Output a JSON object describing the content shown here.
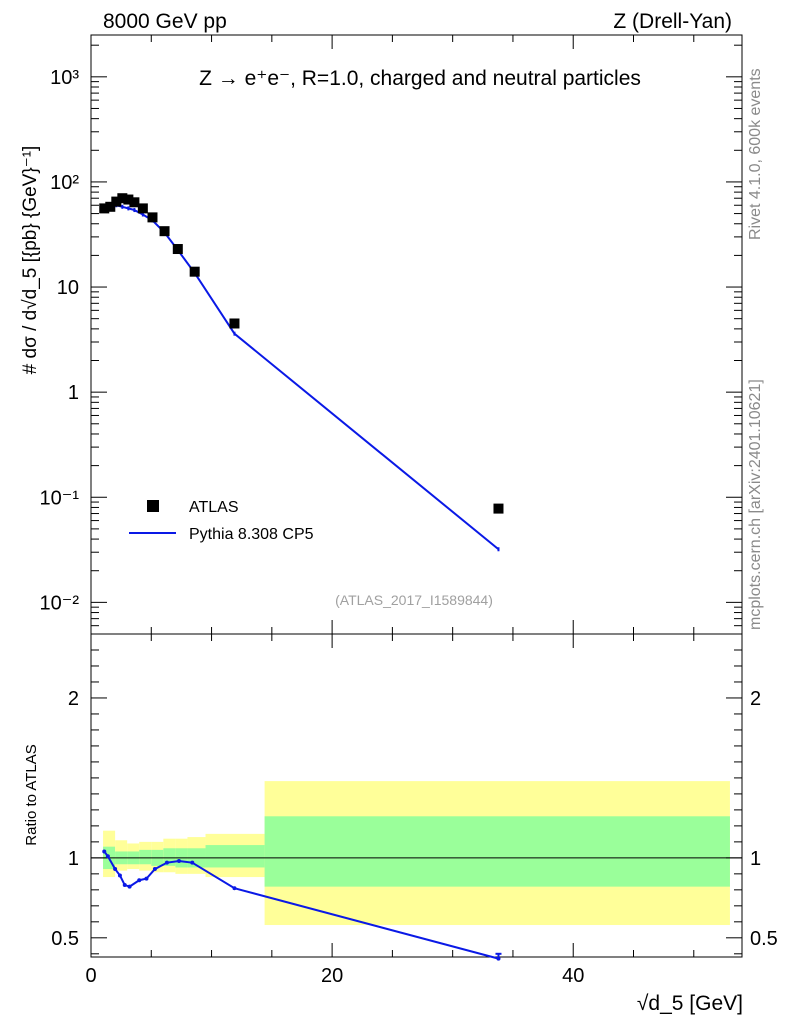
{
  "header": {
    "left": "8000 GeV pp",
    "right": "Z (Drell-Yan)"
  },
  "side_labels": {
    "rivet": "Rivet 4.1.0,  600k events",
    "mcplots": "mcplots.cern.ch [arXiv:2401.10621]"
  },
  "chart_data": {
    "type": "scatter",
    "title": "Z → e⁺e⁻, R=1.0, charged and neutral particles",
    "analysis_id": "(ATLAS_2017_I1589844)",
    "xlabel": "√d_5 [GeV]",
    "ylabel": "# dσ / d√d_5 [{pb} {GeV}⁻¹]",
    "ratio_ylabel": "Ratio to ATLAS",
    "xlim": [
      0,
      54
    ],
    "ylim": [
      0.005,
      2500
    ],
    "ratio_ylim": [
      0.38,
      2.4
    ],
    "x_ticks": [
      "0",
      "20",
      "40"
    ],
    "y_ticks": [
      "10⁻²",
      "10⁻¹",
      "1",
      "10",
      "10²",
      "10³"
    ],
    "ratio_ticks": [
      "0.5",
      "1",
      "2"
    ],
    "legend": [
      "ATLAS",
      "Pythia 8.308 CP5"
    ],
    "series": [
      {
        "name": "ATLAS",
        "x": [
          1.1,
          1.6,
          2.1,
          2.6,
          3.1,
          3.6,
          4.3,
          5.1,
          6.1,
          7.2,
          8.6,
          11.9,
          33.8
        ],
        "y": [
          56,
          58,
          65,
          70,
          68,
          64,
          56,
          46,
          34,
          23,
          14,
          4.5,
          0.078
        ]
      },
      {
        "name": "Pythia 8.308 CP5",
        "x": [
          1.1,
          1.6,
          2.1,
          2.6,
          3.1,
          3.6,
          4.3,
          5.1,
          6.1,
          7.2,
          8.6,
          11.9,
          33.8
        ],
        "y": [
          58,
          59,
          60,
          58,
          56,
          54,
          49,
          43,
          33,
          22.5,
          13.6,
          3.6,
          0.032
        ],
        "ratio": [
          1.04,
          1.01,
          0.93,
          0.89,
          0.83,
          0.82,
          0.86,
          0.87,
          0.93,
          0.97,
          0.98,
          0.97,
          0.81,
          0.37
        ]
      }
    ],
    "ratio_x": [
      1.1,
      1.4,
      2.0,
      2.4,
      2.8,
      3.2,
      4.0,
      4.6,
      5.3,
      6.3,
      7.3,
      8.4,
      11.9,
      33.8
    ],
    "uncertainty_bands": {
      "bin_edges": [
        1.0,
        2.0,
        3.0,
        4.0,
        5.0,
        6.0,
        7.0,
        8.0,
        9.5,
        14.4,
        53.0
      ],
      "inner_low": [
        0.93,
        0.96,
        0.96,
        0.96,
        0.95,
        0.95,
        0.94,
        0.94,
        0.94,
        0.82
      ],
      "inner_high": [
        1.07,
        1.04,
        1.04,
        1.05,
        1.05,
        1.06,
        1.06,
        1.06,
        1.08,
        1.26
      ],
      "outer_low": [
        0.88,
        0.92,
        0.93,
        0.92,
        0.91,
        0.91,
        0.9,
        0.9,
        0.88,
        0.58
      ],
      "outer_high": [
        1.17,
        1.11,
        1.09,
        1.1,
        1.1,
        1.12,
        1.12,
        1.13,
        1.15,
        1.48
      ]
    },
    "colors": {
      "data": "#000000",
      "mc": "#0a19e6",
      "inner_band": "#9aff9a",
      "outer_band": "#ffff99"
    }
  }
}
